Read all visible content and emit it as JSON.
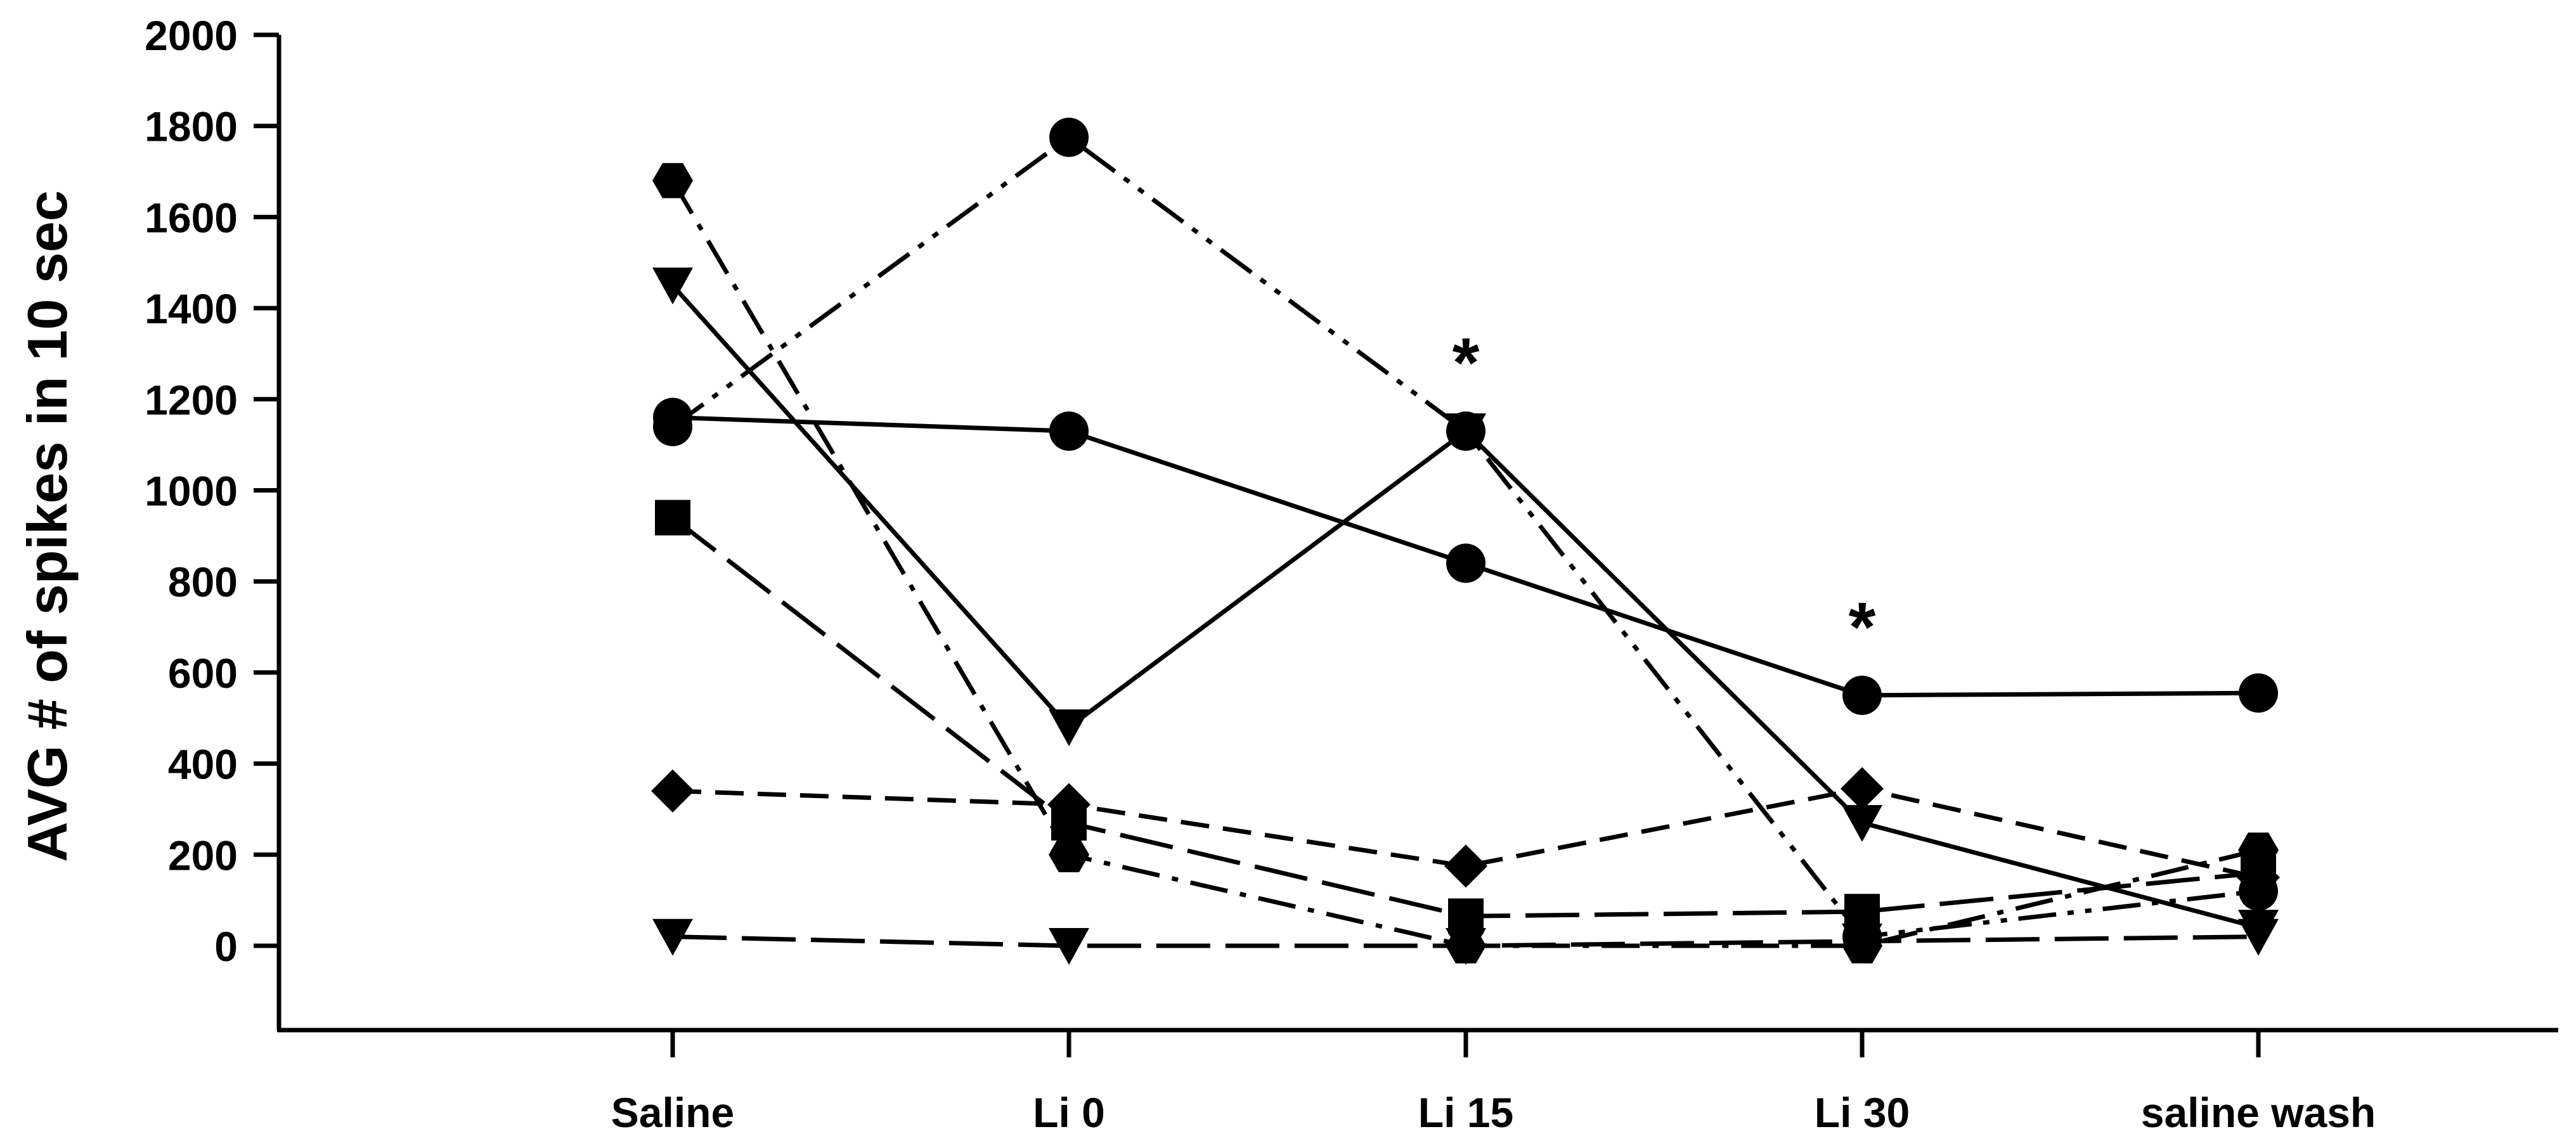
{
  "chart_data": {
    "type": "line",
    "title": "",
    "xlabel": "",
    "ylabel": "AVG # of spikes in 10 sec",
    "categories": [
      "Saline",
      "Li 0",
      "Li 15",
      "Li 30",
      "saline wash"
    ],
    "ylim": [
      0,
      2000
    ],
    "yticks": [
      0,
      200,
      400,
      600,
      800,
      1000,
      1200,
      1400,
      1600,
      1800,
      2000
    ],
    "grid": false,
    "legend": "none",
    "annotations": [
      {
        "category": "Li 15",
        "y": 1290,
        "text": "*"
      },
      {
        "category": "Li 30",
        "y": 710,
        "text": "*"
      }
    ],
    "series": [
      {
        "marker": "circle",
        "line": "solid",
        "values": [
          1160,
          1130,
          840,
          550,
          555
        ]
      },
      {
        "marker": "circle",
        "line": "dash-dot-dot",
        "values": [
          1140,
          1775,
          1130,
          20,
          120
        ]
      },
      {
        "marker": "triangle-down",
        "line": "solid",
        "values": [
          1450,
          480,
          1130,
          270,
          40
        ]
      },
      {
        "marker": "hexagon",
        "line": "dash-dot",
        "values": [
          1680,
          200,
          0,
          0,
          210
        ]
      },
      {
        "marker": "square",
        "line": "long-dash",
        "values": [
          940,
          270,
          65,
          75,
          160
        ]
      },
      {
        "marker": "diamond",
        "line": "dash",
        "values": [
          340,
          310,
          175,
          345,
          150
        ]
      },
      {
        "marker": "triangle-down",
        "line": "long-dash",
        "values": [
          20,
          0,
          0,
          10,
          20
        ]
      }
    ]
  }
}
